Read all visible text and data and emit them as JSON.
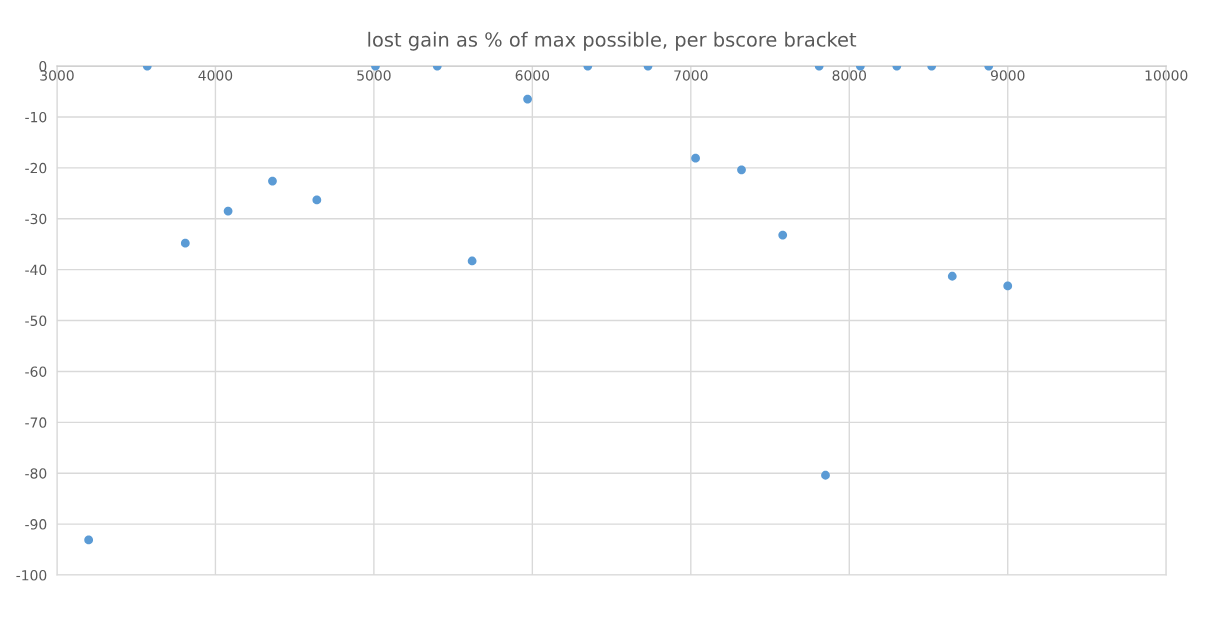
{
  "chart_data": {
    "type": "scatter",
    "title": "lost gain as % of max possible, per bscore bracket",
    "x": [
      3200,
      3570,
      3810,
      4080,
      4360,
      4640,
      5010,
      5400,
      5620,
      5970,
      6350,
      6730,
      7030,
      7320,
      7580,
      7810,
      7850,
      8070,
      8300,
      8520,
      8650,
      8880,
      9000
    ],
    "series": [
      {
        "color": "#5b9bd5",
        "values": [
          -93.1,
          0,
          -34.8,
          -28.5,
          -22.6,
          -26.3,
          0,
          0,
          -38.3,
          -6.5,
          0,
          0,
          -18.1,
          -20.4,
          -33.2,
          0,
          -80.4,
          0,
          0,
          0,
          -41.3,
          0,
          -43.2
        ]
      }
    ],
    "xlim": [
      3000,
      10000
    ],
    "xticks": [
      3000,
      4000,
      5000,
      6000,
      7000,
      8000,
      9000,
      10000
    ],
    "ylim": [
      -100,
      0
    ],
    "yticks": [
      -100,
      -90,
      -80,
      -70,
      -60,
      -50,
      -40,
      -30,
      -20,
      -10,
      0
    ],
    "grid": true,
    "marker": "circle"
  }
}
